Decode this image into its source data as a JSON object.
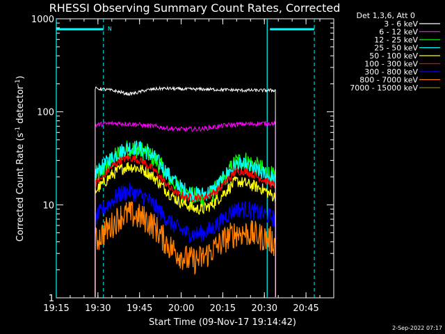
{
  "chart_data": {
    "type": "line",
    "title": "RHESSI Observing Summary Count Rates, Corrected",
    "xlabel": "Start Time (09-Nov-17 19:14:42)",
    "ylabel_main": "Corrected Count Rate (s",
    "ylabel_sup1": "-1",
    "ylabel_mid": " detector",
    "ylabel_sup2": "-1",
    "ylabel_end": ")",
    "ylog": true,
    "xlim": [
      "19:15",
      "20:55"
    ],
    "ylim": [
      1,
      1000
    ],
    "x_ticks": [
      "19:15",
      "19:30",
      "19:45",
      "20:00",
      "20:15",
      "20:30",
      "20:45"
    ],
    "y_ticks": [
      "1",
      "10",
      "100",
      "1000"
    ],
    "legend_title": "Det 1,3,6, Att 0",
    "legend_placement": "right",
    "flag_label": "N",
    "footer_date": "2-Sep-2022 07:17",
    "data_start": "19:29",
    "data_end": "20:34",
    "flag_segments": [
      [
        "19:15",
        "19:32"
      ],
      [
        "20:32",
        "20:48"
      ]
    ],
    "vertical_markers": {
      "solid": [
        "19:15",
        "20:31"
      ],
      "dashed": [
        "19:32",
        "20:48"
      ]
    },
    "x_times": [
      "19:29",
      "19:32",
      "19:35",
      "19:38",
      "19:41",
      "19:44",
      "19:47",
      "19:50",
      "19:53",
      "19:56",
      "19:59",
      "20:02",
      "20:05",
      "20:08",
      "20:11",
      "20:14",
      "20:17",
      "20:20",
      "20:23",
      "20:26",
      "20:29",
      "20:32",
      "20:34"
    ],
    "series": [
      {
        "name": "3 - 6 keV",
        "color": "#ffffff",
        "values": [
          178,
          175,
          170,
          163,
          155,
          160,
          170,
          175,
          178,
          178,
          176,
          175,
          175,
          175,
          174,
          173,
          172,
          171,
          170,
          170,
          170,
          170,
          170
        ]
      },
      {
        "name": "6 - 12 keV",
        "color": "#ff00ff",
        "values": [
          72,
          74,
          75,
          75,
          74,
          73,
          71,
          70,
          68,
          66,
          65,
          65,
          65,
          66,
          68,
          70,
          72,
          73,
          74,
          74,
          75,
          75,
          75
        ]
      },
      {
        "name": "12 - 25 keV",
        "color": "#00ff00",
        "values": [
          20,
          24,
          30,
          36,
          40,
          40,
          37,
          32,
          25,
          19,
          15,
          13,
          12,
          12,
          13,
          16,
          22,
          29,
          30,
          27,
          24,
          21,
          19
        ]
      },
      {
        "name": "25 - 50 keV",
        "color": "#00ffff",
        "values": [
          22,
          26,
          32,
          37,
          42,
          41,
          38,
          33,
          26,
          20,
          16,
          14,
          13,
          13,
          14,
          17,
          22,
          27,
          26,
          24,
          22,
          20,
          18
        ]
      },
      {
        "name": "50 - 100 keV",
        "color": "#ffff00",
        "values": [
          14,
          17,
          21,
          24,
          26,
          25,
          23,
          20,
          16,
          13,
          11,
          10,
          9,
          9,
          10,
          12,
          15,
          18,
          17,
          16,
          15,
          13,
          12
        ]
      },
      {
        "name": "100 - 300 keV",
        "color": "#ff0000",
        "values": [
          17,
          20,
          26,
          30,
          32,
          31,
          28,
          24,
          19,
          15,
          13,
          12,
          12,
          12,
          13,
          15,
          19,
          23,
          23,
          21,
          19,
          17,
          16
        ]
      },
      {
        "name": "300 - 800 keV",
        "color": "#0000ff",
        "values": [
          7,
          9,
          11,
          13,
          14,
          13,
          12,
          10,
          8,
          6.5,
          5.5,
          5,
          4.8,
          5,
          5.5,
          6.5,
          8,
          9,
          9,
          8.5,
          8,
          7.5,
          7
        ]
      },
      {
        "name": "800 - 7000 keV",
        "color": "#ff8000",
        "values": [
          4,
          5,
          6,
          7.5,
          8,
          7.5,
          7,
          6,
          4.5,
          3.5,
          3,
          2.6,
          2.5,
          2.7,
          3.2,
          3.8,
          4.5,
          5,
          5,
          4.8,
          4.5,
          4.2,
          3.8
        ]
      },
      {
        "name": "7000 - 15000 keV",
        "color": "#808000",
        "values": []
      }
    ]
  }
}
